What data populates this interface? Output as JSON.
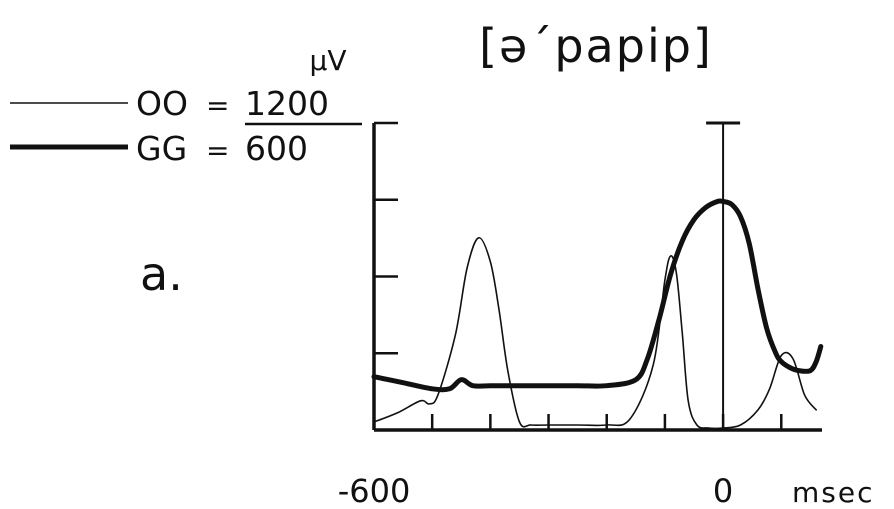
{
  "chart_data": {
    "type": "line",
    "title": "[ə´papip]",
    "panel_label": "a.",
    "unit_label": "μV",
    "xlabel_unit": "msec",
    "x_tick_labels": [
      {
        "x": -600,
        "label": "-600"
      },
      {
        "x": 0,
        "label": "0"
      }
    ],
    "x_ticks": [
      -500,
      -400,
      -300,
      -200,
      -100,
      0,
      100
    ],
    "xlim": [
      -600,
      170
    ],
    "ylim": [
      0,
      1
    ],
    "y_ticks": [
      0.25,
      0.5,
      0.75,
      1.0
    ],
    "x_zero_marker": 0,
    "legend": {
      "placement": "top-left",
      "entries": [
        {
          "code": "OO",
          "eq": "=",
          "value": "1200",
          "value_underlined": true,
          "style": "thin"
        },
        {
          "code": "GG",
          "eq": "=",
          "value": "600",
          "value_underlined": false,
          "style": "thick"
        }
      ]
    },
    "series": [
      {
        "name": "OO",
        "style": "thin",
        "x": [
          -600,
          -560,
          -520,
          -505,
          -490,
          -460,
          -440,
          -420,
          -400,
          -385,
          -370,
          -350,
          -330,
          -300,
          -250,
          -200,
          -160,
          -120,
          -100,
          -90,
          -80,
          -70,
          -60,
          -45,
          -25,
          0,
          30,
          60,
          80,
          100,
          120,
          140,
          160
        ],
        "y": [
          0.01,
          0.04,
          0.08,
          0.07,
          0.1,
          0.3,
          0.52,
          0.62,
          0.54,
          0.38,
          0.18,
          0.01,
          0.0,
          0.0,
          0.0,
          0.0,
          0.02,
          0.2,
          0.48,
          0.56,
          0.5,
          0.3,
          0.08,
          0.0,
          -0.01,
          -0.01,
          0.0,
          0.05,
          0.12,
          0.23,
          0.22,
          0.1,
          0.05
        ]
      },
      {
        "name": "GG",
        "style": "thick",
        "x": [
          -600,
          -550,
          -500,
          -470,
          -450,
          -430,
          -400,
          -350,
          -300,
          -250,
          -200,
          -150,
          -130,
          -110,
          -90,
          -70,
          -50,
          -30,
          -10,
          0,
          15,
          30,
          45,
          60,
          75,
          90,
          100,
          115,
          130,
          150,
          160,
          168
        ],
        "y": [
          0.16,
          0.14,
          0.12,
          0.12,
          0.15,
          0.13,
          0.13,
          0.13,
          0.13,
          0.13,
          0.13,
          0.15,
          0.22,
          0.35,
          0.5,
          0.61,
          0.68,
          0.72,
          0.74,
          0.74,
          0.73,
          0.69,
          0.6,
          0.45,
          0.32,
          0.24,
          0.21,
          0.19,
          0.18,
          0.18,
          0.21,
          0.26
        ]
      }
    ]
  }
}
